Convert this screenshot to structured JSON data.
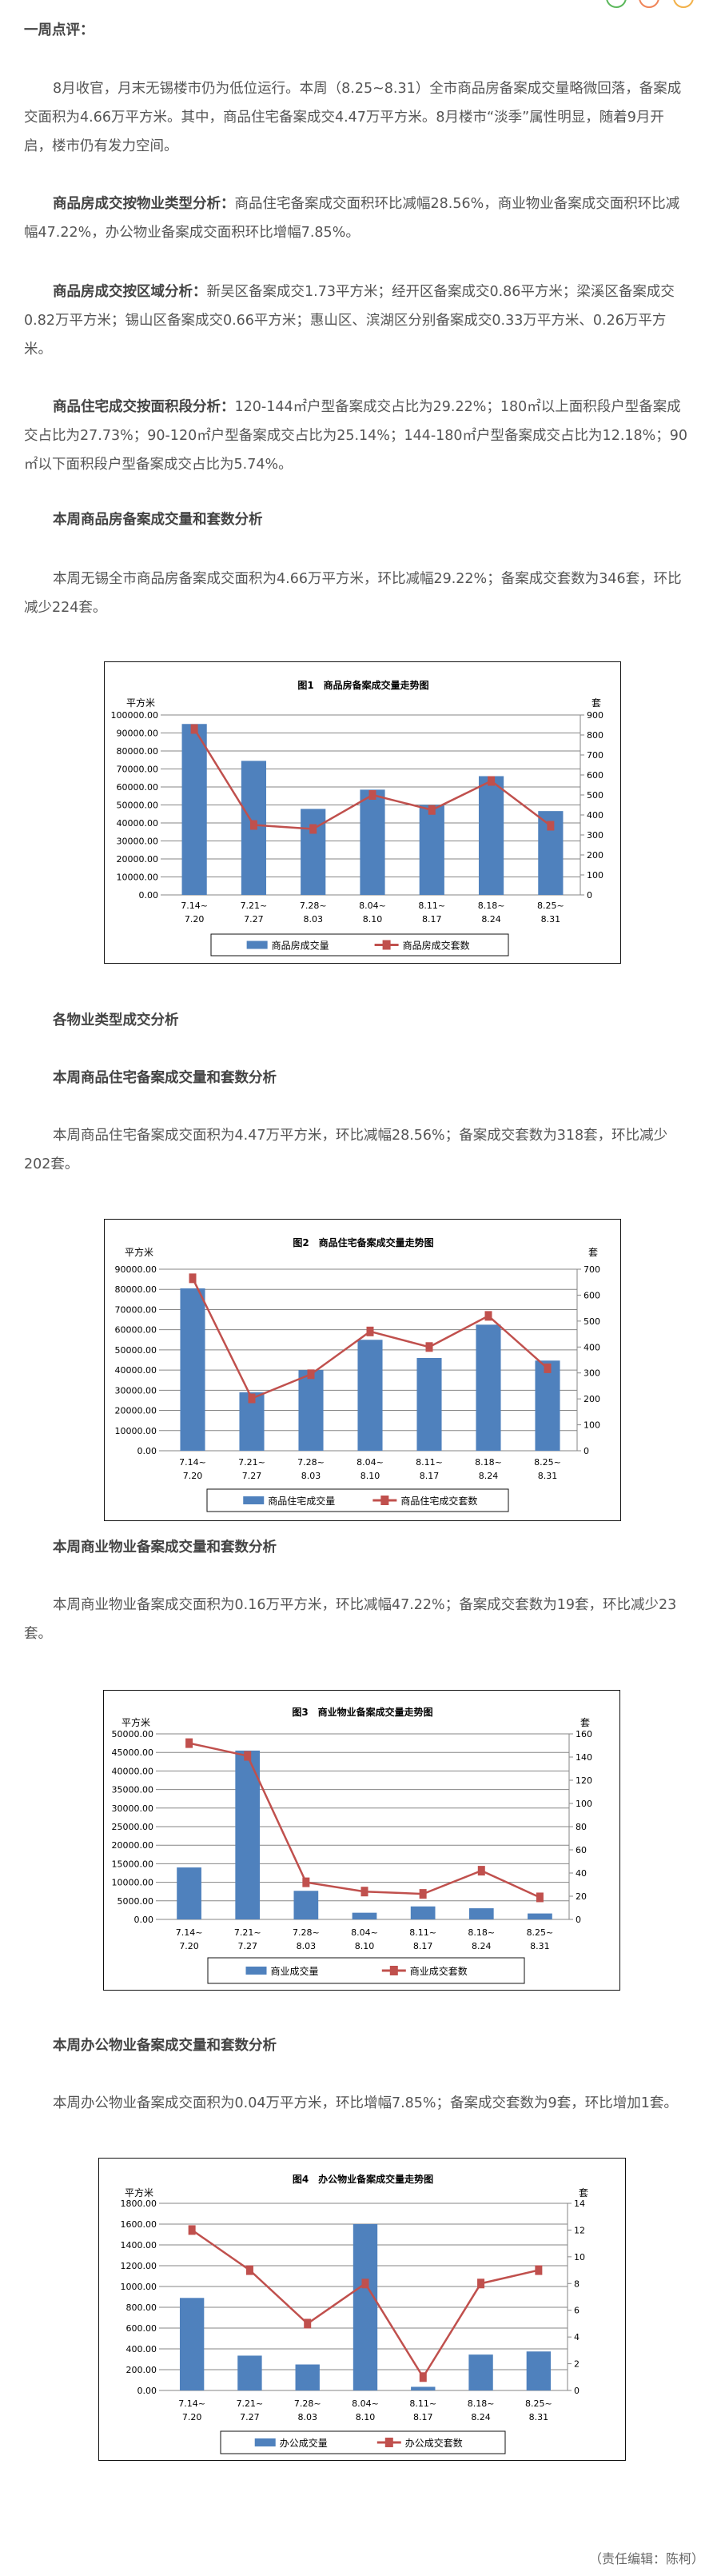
{
  "top_icons": [
    {
      "name": "share-green-icon",
      "color": "#5cb85c"
    },
    {
      "name": "share-orange-icon",
      "color": "#f0865a"
    },
    {
      "name": "share-yellow-icon",
      "color": "#f2b14a"
    }
  ],
  "article": {
    "review_title": "一周点评：",
    "p1": "8月收官，月末无锡楼市仍为低位运行。本周（8.25~8.31）全市商品房备案成交量略微回落，备案成交面积为4.66万平方米。其中，商品住宅备案成交4.47万平方米。8月楼市“淡季”属性明显，随着9月开启，楼市仍有发力空间。",
    "p2_lead": "商品房成交按物业类型分析：",
    "p2": "商品住宅备案成交面积环比减幅28.56%，商业物业备案成交面积环比减幅47.22%，办公物业备案成交面积环比增幅7.85%。",
    "p3_lead": "商品房成交按区域分析：",
    "p3": "新吴区备案成交1.73平方米；经开区备案成交0.86平方米；梁溪区备案成交0.82万平方米；锡山区备案成交0.66平方米；惠山区、滨湖区分别备案成交0.33万平方米、0.26万平方米。",
    "p4_lead": "商品住宅成交按面积段分析：",
    "p4": "120-144㎡户型备案成交占比为29.22%；180㎡以上面积段户型备案成交占比为27.73%；90-120㎡户型备案成交占比为25.14%；144-180㎡户型备案成交占比为12.18%；90㎡以下面积段户型备案成交占比为5.74%。",
    "h1": "本周商品房备案成交量和套数分析",
    "p5": "本周无锡全市商品房备案成交面积为4.66万平方米，环比减幅29.22%；备案成交套数为346套，环比减少224套。",
    "h2": "各物业类型成交分析",
    "h3": "本周商品住宅备案成交量和套数分析",
    "p6": "本周商品住宅备案成交面积为4.47万平方米，环比减幅28.56%；备案成交套数为318套，环比减少202套。",
    "h4": "本周商业物业备案成交量和套数分析",
    "p7": "本周商业物业备案成交面积为0.16万平方米，环比减幅47.22%；备案成交套数为19套，环比减少23套。",
    "h5": "本周办公物业备案成交量和套数分析",
    "p8": "本周办公物业备案成交面积为0.04万平方米，环比增幅7.85%；备案成交套数为9套，环比增加1套。",
    "editor": "（责任编辑：陈柯）"
  },
  "colors": {
    "bar": "#4f81bd",
    "line": "#c0504d",
    "grid": "#868686"
  },
  "chart_data": [
    {
      "type": "bar+line",
      "title": "图1　商品房备案成交量走势图",
      "ylabel": "平方米",
      "y2label": "套",
      "categories": [
        [
          "7.14~",
          "7.20"
        ],
        [
          "7.21~",
          "7.27"
        ],
        [
          "7.28~",
          "8.03"
        ],
        [
          "8.04~",
          "8.10"
        ],
        [
          "8.11~",
          "8.17"
        ],
        [
          "8.18~",
          "8.24"
        ],
        [
          "8.25~",
          "8.31"
        ]
      ],
      "ylim": [
        0,
        100000
      ],
      "y2lim": [
        0,
        900
      ],
      "yticks": [
        "0.00",
        "10000.00",
        "20000.00",
        "30000.00",
        "40000.00",
        "50000.00",
        "60000.00",
        "70000.00",
        "80000.00",
        "90000.00",
        "100000.00"
      ],
      "y2ticks": [
        "0",
        "100",
        "200",
        "300",
        "400",
        "500",
        "600",
        "700",
        "800",
        "900"
      ],
      "series": [
        {
          "name": "商品房成交量",
          "kind": "bar",
          "axis": "left",
          "values": [
            95000,
            74500,
            47800,
            58500,
            50000,
            66000,
            46600
          ]
        },
        {
          "name": "商品房成交套数",
          "kind": "line",
          "axis": "right",
          "values": [
            830,
            350,
            330,
            500,
            425,
            570,
            346
          ]
        }
      ],
      "grid": true,
      "legend": "bottom"
    },
    {
      "type": "bar+line",
      "title": "图2　商品住宅备案成交量走势图",
      "ylabel": "平方米",
      "y2label": "套",
      "categories": [
        [
          "7.14~",
          "7.20"
        ],
        [
          "7.21~",
          "7.27"
        ],
        [
          "7.28~",
          "8.03"
        ],
        [
          "8.04~",
          "8.10"
        ],
        [
          "8.11~",
          "8.17"
        ],
        [
          "8.18~",
          "8.24"
        ],
        [
          "8.25~",
          "8.31"
        ]
      ],
      "ylim": [
        0,
        90000
      ],
      "y2lim": [
        0,
        700
      ],
      "yticks": [
        "0.00",
        "10000.00",
        "20000.00",
        "30000.00",
        "40000.00",
        "50000.00",
        "60000.00",
        "70000.00",
        "80000.00",
        "90000.00"
      ],
      "y2ticks": [
        "0",
        "100",
        "200",
        "300",
        "400",
        "500",
        "600",
        "700"
      ],
      "series": [
        {
          "name": "商品住宅成交量",
          "kind": "bar",
          "axis": "left",
          "values": [
            80500,
            29000,
            40000,
            55000,
            46000,
            62500,
            44700
          ]
        },
        {
          "name": "商品住宅成交套数",
          "kind": "line",
          "axis": "right",
          "values": [
            665,
            202,
            295,
            460,
            400,
            520,
            318
          ]
        }
      ],
      "grid": true,
      "legend": "bottom"
    },
    {
      "type": "bar+line",
      "title": "图3　商业物业备案成交量走势图",
      "ylabel": "平方米",
      "y2label": "套",
      "categories": [
        [
          "7.14~",
          "7.20"
        ],
        [
          "7.21~",
          "7.27"
        ],
        [
          "7.28~",
          "8.03"
        ],
        [
          "8.04~",
          "8.10"
        ],
        [
          "8.11~",
          "8.17"
        ],
        [
          "8.18~",
          "8.24"
        ],
        [
          "8.25~",
          "8.31"
        ]
      ],
      "ylim": [
        0,
        50000
      ],
      "y2lim": [
        0,
        160
      ],
      "yticks": [
        "0.00",
        "5000.00",
        "10000.00",
        "15000.00",
        "20000.00",
        "25000.00",
        "30000.00",
        "35000.00",
        "40000.00",
        "45000.00",
        "50000.00"
      ],
      "y2ticks": [
        "0",
        "20",
        "40",
        "60",
        "80",
        "100",
        "120",
        "140",
        "160"
      ],
      "series": [
        {
          "name": "商业成交量",
          "kind": "bar",
          "axis": "left",
          "values": [
            14000,
            45500,
            7700,
            1800,
            3500,
            3000,
            1600
          ]
        },
        {
          "name": "商业成交套数",
          "kind": "line",
          "axis": "right",
          "values": [
            152,
            141,
            32,
            24,
            22,
            42,
            19
          ]
        }
      ],
      "grid": true,
      "legend": "bottom"
    },
    {
      "type": "bar+line",
      "title": "图4　办公物业备案成交量走势图",
      "ylabel": "平方米",
      "y2label": "套",
      "categories": [
        [
          "7.14~",
          "7.20"
        ],
        [
          "7.21~",
          "7.27"
        ],
        [
          "7.28~",
          "8.03"
        ],
        [
          "8.04~",
          "8.10"
        ],
        [
          "8.11~",
          "8.17"
        ],
        [
          "8.18~",
          "8.24"
        ],
        [
          "8.25~",
          "8.31"
        ]
      ],
      "ylim": [
        0,
        1800
      ],
      "y2lim": [
        0,
        14
      ],
      "yticks": [
        "0.00",
        "200.00",
        "400.00",
        "600.00",
        "800.00",
        "1000.00",
        "1200.00",
        "1400.00",
        "1600.00",
        "1800.00"
      ],
      "y2ticks": [
        "0",
        "2",
        "4",
        "6",
        "8",
        "10",
        "12",
        "14"
      ],
      "series": [
        {
          "name": "办公成交量",
          "kind": "bar",
          "axis": "left",
          "values": [
            890,
            335,
            250,
            1600,
            35,
            345,
            375
          ]
        },
        {
          "name": "办公成交套数",
          "kind": "line",
          "axis": "right",
          "values": [
            12,
            9,
            5,
            8,
            1,
            8,
            9
          ]
        }
      ],
      "grid": true,
      "legend": "bottom"
    }
  ]
}
